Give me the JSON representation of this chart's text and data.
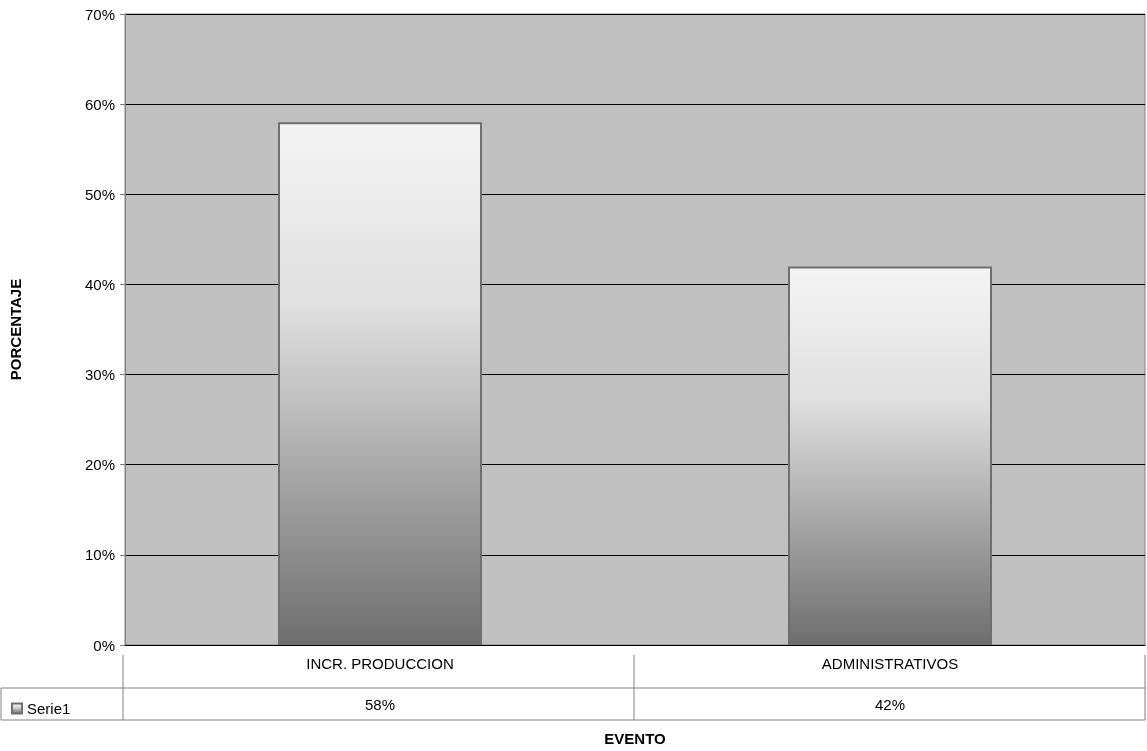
{
  "chart_data": {
    "type": "bar",
    "xlabel": "EVENTO",
    "ylabel": "PORCENTAJE",
    "categories": [
      "INCR. PRODUCCION",
      "ADMINISTRATIVOS"
    ],
    "series": [
      {
        "name": "Serie1",
        "color": "#6e6e6e",
        "values": [
          58,
          42
        ],
        "value_labels": [
          "58%",
          "42%"
        ]
      }
    ],
    "ylim": [
      0,
      70
    ],
    "yticks": [
      {
        "value": 0,
        "label": "0%"
      },
      {
        "value": 10,
        "label": "10%"
      },
      {
        "value": 20,
        "label": "20%"
      },
      {
        "value": 30,
        "label": "30%"
      },
      {
        "value": 40,
        "label": "40%"
      },
      {
        "value": 50,
        "label": "50%"
      },
      {
        "value": 60,
        "label": "60%"
      },
      {
        "value": 70,
        "label": "70%"
      }
    ],
    "grid": "y",
    "legend": "bottom left"
  }
}
